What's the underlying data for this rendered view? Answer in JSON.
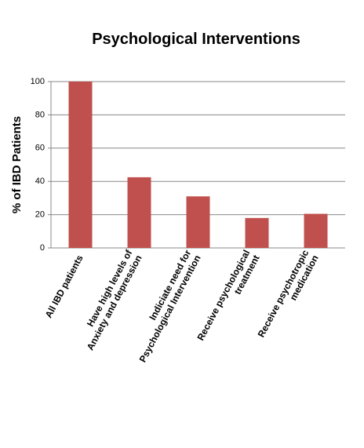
{
  "chart_data": {
    "type": "bar",
    "title": "Psychological Interventions",
    "y_label": "% of IBD Patients",
    "categories": [
      "All IBD patients",
      "Have high levels of\nAnxiety and depression",
      "Indiciate need for\nPsychological Intervention",
      "Receive psychological\ntreatment",
      "Receive psychotropic\nmedication"
    ],
    "values": [
      100,
      42.5,
      31,
      18,
      20.5
    ],
    "color": "#c0504d",
    "ylim": [
      0,
      100
    ],
    "yticks": [
      0,
      20,
      40,
      60,
      80,
      100
    ],
    "grid": true
  }
}
